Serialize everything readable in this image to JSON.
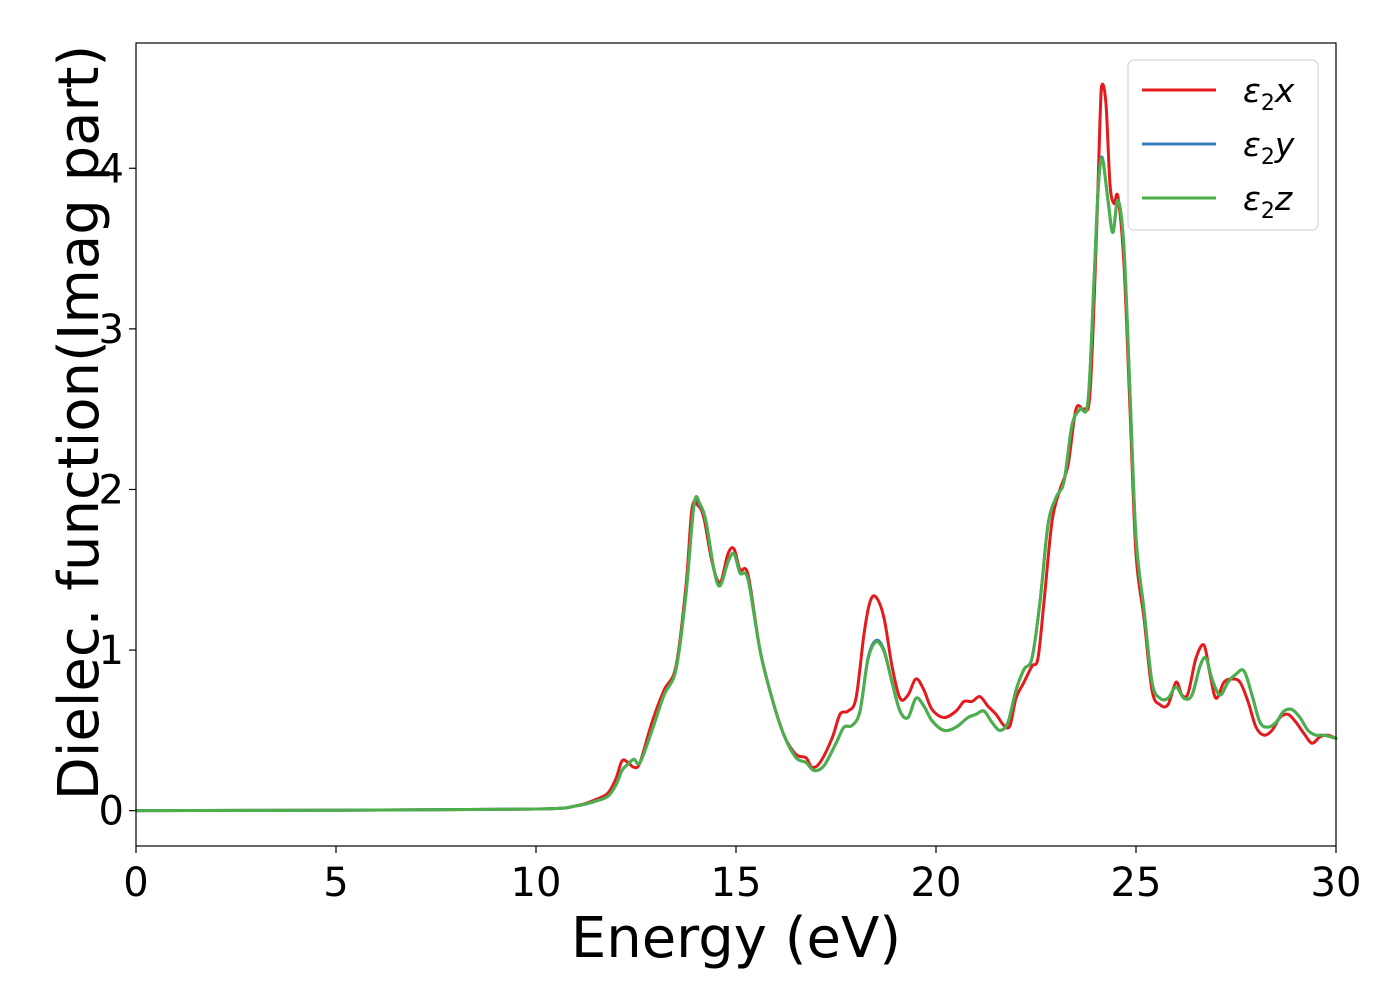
{
  "chart_data": {
    "type": "line",
    "title": "",
    "xlabel": "Energy (eV)",
    "ylabel": "Dielec. function(Imag part)",
    "xlim": [
      0,
      30
    ],
    "ylim": [
      -0.22,
      4.78
    ],
    "xticks": [
      0,
      5,
      10,
      15,
      20,
      25,
      30
    ],
    "yticks": [
      0,
      1,
      2,
      3,
      4
    ],
    "grid": false,
    "legend_position": "top-right",
    "series": [
      {
        "name": "ε2x",
        "legend": {
          "base": "ε",
          "sub": "2",
          "var": "x"
        },
        "color": "#e41a1c",
        "x": [
          0,
          5,
          10,
          11,
          11.5,
          11.8,
          12.0,
          12.15,
          12.3,
          12.45,
          12.6,
          12.9,
          13.2,
          13.5,
          13.75,
          13.9,
          14.05,
          14.2,
          14.4,
          14.6,
          14.8,
          14.95,
          15.1,
          15.3,
          15.6,
          15.9,
          16.2,
          16.5,
          16.75,
          16.9,
          17.1,
          17.4,
          17.6,
          17.8,
          18.0,
          18.2,
          18.35,
          18.5,
          18.7,
          18.9,
          19.1,
          19.3,
          19.5,
          19.7,
          19.9,
          20.2,
          20.5,
          20.7,
          20.9,
          21.1,
          21.3,
          21.5,
          21.7,
          21.85,
          22.0,
          22.2,
          22.4,
          22.55,
          22.7,
          22.9,
          23.1,
          23.3,
          23.5,
          23.7,
          23.85,
          24.0,
          24.1,
          24.15,
          24.25,
          24.35,
          24.45,
          24.55,
          24.7,
          24.85,
          25.0,
          25.2,
          25.4,
          25.6,
          25.8,
          26.0,
          26.15,
          26.3,
          26.5,
          26.7,
          26.85,
          27.0,
          27.2,
          27.4,
          27.6,
          27.8,
          28.0,
          28.2,
          28.4,
          28.6,
          28.8,
          29.0,
          29.2,
          29.4,
          29.6,
          29.8,
          30.0
        ],
        "y": [
          0,
          0.003,
          0.01,
          0.03,
          0.07,
          0.11,
          0.2,
          0.31,
          0.3,
          0.27,
          0.3,
          0.55,
          0.75,
          0.9,
          1.4,
          1.88,
          1.9,
          1.82,
          1.55,
          1.42,
          1.6,
          1.63,
          1.5,
          1.47,
          1.0,
          0.7,
          0.47,
          0.35,
          0.33,
          0.27,
          0.3,
          0.45,
          0.6,
          0.62,
          0.7,
          1.1,
          1.3,
          1.33,
          1.2,
          0.9,
          0.7,
          0.72,
          0.82,
          0.75,
          0.63,
          0.58,
          0.62,
          0.68,
          0.68,
          0.71,
          0.65,
          0.6,
          0.53,
          0.53,
          0.7,
          0.8,
          0.9,
          0.95,
          1.3,
          1.8,
          2.0,
          2.15,
          2.5,
          2.5,
          2.6,
          3.5,
          4.3,
          4.52,
          4.4,
          3.9,
          3.78,
          3.82,
          3.4,
          2.5,
          1.6,
          1.2,
          0.75,
          0.66,
          0.66,
          0.8,
          0.72,
          0.73,
          0.95,
          1.03,
          0.85,
          0.7,
          0.8,
          0.82,
          0.8,
          0.68,
          0.52,
          0.47,
          0.5,
          0.58,
          0.6,
          0.55,
          0.48,
          0.42,
          0.46,
          0.47,
          0.45
        ]
      },
      {
        "name": "ε2y",
        "legend": {
          "base": "ε",
          "sub": "2",
          "var": "y"
        },
        "color": "#377eb8",
        "x": [
          0,
          5,
          10,
          11,
          11.5,
          11.8,
          12.0,
          12.15,
          12.3,
          12.45,
          12.6,
          12.9,
          13.2,
          13.5,
          13.75,
          13.95,
          14.1,
          14.25,
          14.45,
          14.6,
          14.8,
          14.95,
          15.1,
          15.3,
          15.6,
          15.9,
          16.2,
          16.5,
          16.75,
          16.95,
          17.2,
          17.5,
          17.7,
          17.9,
          18.1,
          18.3,
          18.5,
          18.7,
          18.9,
          19.1,
          19.3,
          19.5,
          19.7,
          19.9,
          20.2,
          20.5,
          20.8,
          21.0,
          21.2,
          21.4,
          21.6,
          21.8,
          22.0,
          22.2,
          22.4,
          22.6,
          22.8,
          23.0,
          23.2,
          23.4,
          23.6,
          23.8,
          23.95,
          24.05,
          24.15,
          24.3,
          24.42,
          24.55,
          24.7,
          24.85,
          25.0,
          25.2,
          25.4,
          25.6,
          25.8,
          26.0,
          26.2,
          26.4,
          26.6,
          26.75,
          26.9,
          27.1,
          27.3,
          27.5,
          27.7,
          27.9,
          28.1,
          28.3,
          28.5,
          28.7,
          28.9,
          29.1,
          29.3,
          29.5,
          29.7,
          30.0
        ],
        "y": [
          0,
          0.003,
          0.01,
          0.03,
          0.06,
          0.09,
          0.16,
          0.25,
          0.29,
          0.32,
          0.3,
          0.5,
          0.72,
          0.88,
          1.35,
          1.9,
          1.9,
          1.8,
          1.5,
          1.4,
          1.55,
          1.6,
          1.48,
          1.44,
          1.0,
          0.7,
          0.47,
          0.33,
          0.3,
          0.25,
          0.28,
          0.42,
          0.52,
          0.53,
          0.62,
          0.95,
          1.06,
          1.0,
          0.8,
          0.62,
          0.58,
          0.7,
          0.65,
          0.56,
          0.5,
          0.52,
          0.58,
          0.6,
          0.62,
          0.55,
          0.5,
          0.55,
          0.75,
          0.88,
          0.95,
          1.3,
          1.78,
          1.95,
          2.05,
          2.4,
          2.5,
          2.55,
          3.3,
          3.85,
          4.07,
          3.8,
          3.6,
          3.8,
          3.5,
          2.6,
          1.7,
          1.25,
          0.8,
          0.7,
          0.7,
          0.77,
          0.7,
          0.72,
          0.9,
          0.95,
          0.82,
          0.72,
          0.8,
          0.85,
          0.87,
          0.72,
          0.55,
          0.52,
          0.55,
          0.62,
          0.63,
          0.58,
          0.5,
          0.47,
          0.47,
          0.45
        ]
      },
      {
        "name": "ε2z",
        "legend": {
          "base": "ε",
          "sub": "2",
          "var": "z"
        },
        "color": "#4daf4a",
        "x": [
          0,
          5,
          10,
          11,
          11.5,
          11.8,
          12.0,
          12.15,
          12.3,
          12.45,
          12.6,
          12.9,
          13.2,
          13.5,
          13.75,
          13.95,
          14.1,
          14.25,
          14.45,
          14.6,
          14.8,
          14.95,
          15.1,
          15.3,
          15.6,
          15.9,
          16.2,
          16.5,
          16.75,
          16.95,
          17.2,
          17.5,
          17.7,
          17.9,
          18.1,
          18.3,
          18.5,
          18.7,
          18.9,
          19.1,
          19.3,
          19.5,
          19.7,
          19.9,
          20.2,
          20.5,
          20.8,
          21.0,
          21.2,
          21.4,
          21.6,
          21.8,
          22.0,
          22.2,
          22.4,
          22.6,
          22.8,
          23.0,
          23.2,
          23.4,
          23.6,
          23.8,
          23.95,
          24.05,
          24.15,
          24.3,
          24.42,
          24.55,
          24.7,
          24.85,
          25.0,
          25.2,
          25.4,
          25.6,
          25.8,
          26.0,
          26.2,
          26.4,
          26.6,
          26.75,
          26.9,
          27.1,
          27.3,
          27.5,
          27.7,
          27.9,
          28.1,
          28.3,
          28.5,
          28.7,
          28.9,
          29.1,
          29.3,
          29.5,
          29.7,
          30.0
        ],
        "y": [
          0,
          0.003,
          0.01,
          0.03,
          0.06,
          0.09,
          0.16,
          0.25,
          0.29,
          0.32,
          0.3,
          0.5,
          0.72,
          0.88,
          1.35,
          1.91,
          1.91,
          1.8,
          1.5,
          1.4,
          1.55,
          1.6,
          1.48,
          1.44,
          1.0,
          0.7,
          0.47,
          0.33,
          0.3,
          0.25,
          0.28,
          0.42,
          0.52,
          0.53,
          0.62,
          0.94,
          1.05,
          0.99,
          0.8,
          0.62,
          0.58,
          0.7,
          0.65,
          0.56,
          0.5,
          0.52,
          0.58,
          0.6,
          0.62,
          0.55,
          0.5,
          0.55,
          0.75,
          0.88,
          0.95,
          1.3,
          1.78,
          1.95,
          2.05,
          2.4,
          2.5,
          2.55,
          3.3,
          3.85,
          4.06,
          3.8,
          3.6,
          3.8,
          3.5,
          2.6,
          1.7,
          1.25,
          0.8,
          0.7,
          0.7,
          0.77,
          0.7,
          0.72,
          0.9,
          0.95,
          0.82,
          0.72,
          0.8,
          0.85,
          0.87,
          0.72,
          0.55,
          0.52,
          0.55,
          0.62,
          0.63,
          0.58,
          0.5,
          0.47,
          0.47,
          0.45
        ]
      }
    ]
  }
}
